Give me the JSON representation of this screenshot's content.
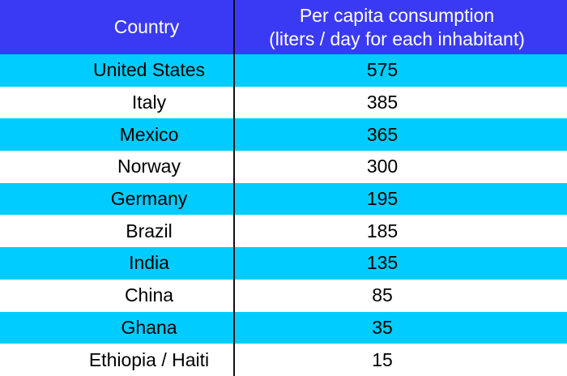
{
  "colors": {
    "header_bg": "#3a3af5",
    "row_blue": "#00ccff",
    "row_white": "#ffffff"
  },
  "header": {
    "col1": "Country",
    "col2_line1": "Per capita consumption",
    "col2_line2": "(liters / day for each inhabitant)"
  },
  "rows": [
    {
      "country": "United States",
      "value": "575"
    },
    {
      "country": "Italy",
      "value": "385"
    },
    {
      "country": "Mexico",
      "value": "365"
    },
    {
      "country": "Norway",
      "value": "300"
    },
    {
      "country": "Germany",
      "value": "195"
    },
    {
      "country": "Brazil",
      "value": "185"
    },
    {
      "country": "India",
      "value": "135"
    },
    {
      "country": "China",
      "value": "85"
    },
    {
      "country": "Ghana",
      "value": "35"
    },
    {
      "country": "Ethiopia / Haiti",
      "value": "15"
    }
  ]
}
